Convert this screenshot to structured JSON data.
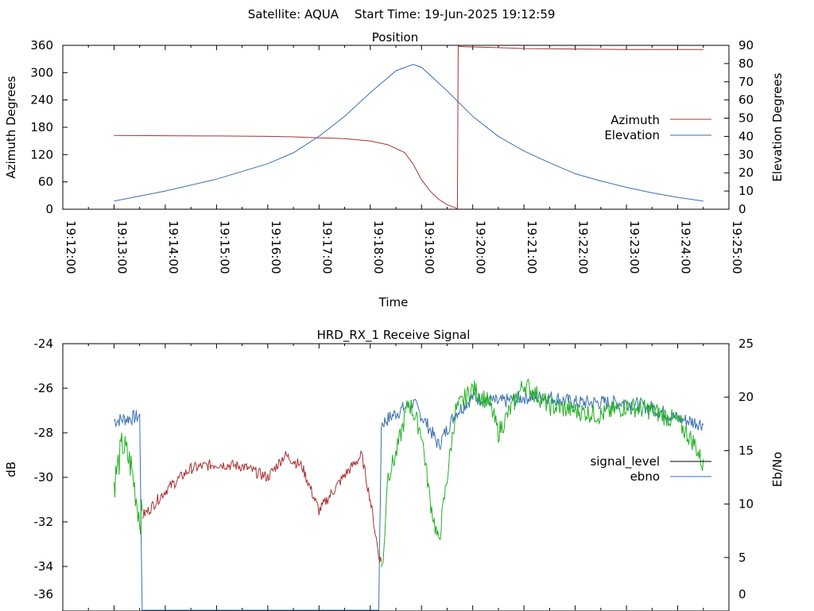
{
  "header": {
    "satellite": "Satellite: AQUA",
    "start_time": "Start Time: 19-Jun-2025 19:12:59"
  },
  "colors": {
    "azimuth": "#a83232",
    "elevation": "#3a6fb0",
    "signal_level_legend": "#000000",
    "ebno_legend": "#3a6fb0",
    "ebno_trace": "#3a6fb0",
    "signal_trace_red": "#a83232",
    "signal_trace_green": "#20b020"
  },
  "chart_data": [
    {
      "type": "line",
      "title": "Position",
      "xlabel": "Time",
      "ylabel": "Azimuth Degrees",
      "y2label": "Elevation Degrees",
      "xlim": [
        "19:12:00",
        "19:25:00"
      ],
      "ylim": [
        0,
        360
      ],
      "y2lim": [
        0,
        90
      ],
      "xticks": [
        "19:12:00",
        "19:13:00",
        "19:14:00",
        "19:15:00",
        "19:16:00",
        "19:17:00",
        "19:18:00",
        "19:19:00",
        "19:20:00",
        "19:21:00",
        "19:22:00",
        "19:23:00",
        "19:24:00",
        "19:25:00"
      ],
      "yticks": [
        "0",
        "60",
        "120",
        "180",
        "240",
        "300",
        "360"
      ],
      "y2ticks": [
        "0",
        "10",
        "20",
        "30",
        "40",
        "50",
        "60",
        "70",
        "80",
        "90"
      ],
      "legend_position": "right",
      "series": [
        {
          "name": "Azimuth",
          "axis": "left",
          "x": [
            "19:13:00",
            "19:14:00",
            "19:15:00",
            "19:16:00",
            "19:16:30",
            "19:17:00",
            "19:17:30",
            "19:18:00",
            "19:18:20",
            "19:18:40",
            "19:18:50",
            "19:19:00",
            "19:19:10",
            "19:19:20",
            "19:19:30",
            "19:19:40",
            "19:19:42",
            "19:19:43",
            "19:19:50",
            "19:20:30",
            "19:21:00",
            "19:22:00",
            "19:23:00",
            "19:24:00",
            "19:24:30"
          ],
          "values": [
            162,
            161.5,
            161,
            160,
            159,
            157,
            155,
            150,
            142,
            125,
            100,
            65,
            40,
            22,
            10,
            3,
            1,
            358,
            357,
            355,
            353,
            352,
            351,
            351,
            351
          ]
        },
        {
          "name": "Elevation",
          "axis": "right",
          "x": [
            "19:13:00",
            "19:14:00",
            "19:15:00",
            "19:16:00",
            "19:16:30",
            "19:17:00",
            "19:17:30",
            "19:18:00",
            "19:18:30",
            "19:18:50",
            "19:19:00",
            "19:19:30",
            "19:20:00",
            "19:20:30",
            "19:21:00",
            "19:21:30",
            "19:22:00",
            "19:22:30",
            "19:23:00",
            "19:23:30",
            "19:24:00",
            "19:24:30"
          ],
          "values": [
            4.5,
            10,
            16.5,
            25,
            31,
            40,
            51,
            64,
            76,
            79.5,
            78,
            65,
            51,
            40,
            32,
            25.5,
            19.5,
            15.5,
            12,
            9,
            6.5,
            4.5
          ]
        }
      ]
    },
    {
      "type": "line",
      "title": "HRD_RX_1 Receive Signal",
      "ylabel": "dB",
      "y2label": "Eb/No",
      "ylim": [
        -36,
        -24
      ],
      "y2lim": [
        0,
        25
      ],
      "yticks": [
        "-24",
        "-26",
        "-28",
        "-30",
        "-32",
        "-34",
        "-36"
      ],
      "y2ticks": [
        "0",
        "5",
        "10",
        "15",
        "20",
        "25"
      ],
      "legend_position": "right",
      "series": [
        {
          "name": "signal_level",
          "axis": "left",
          "x": [
            "19:13:00",
            "19:13:10",
            "19:13:20",
            "19:13:30",
            "19:13:40",
            "19:14:00",
            "19:14:30",
            "19:15:00",
            "19:15:30",
            "19:16:00",
            "19:16:20",
            "19:16:40",
            "19:17:00",
            "19:17:30",
            "19:17:50",
            "19:18:00",
            "19:18:10",
            "19:18:15",
            "19:18:20",
            "19:18:30",
            "19:18:45",
            "19:19:00",
            "19:19:10",
            "19:19:20",
            "19:19:40",
            "19:20:00",
            "19:20:20",
            "19:20:30",
            "19:21:00",
            "19:21:30",
            "19:22:00",
            "19:22:30",
            "19:23:00",
            "19:23:30",
            "19:24:00",
            "19:24:20",
            "19:24:30"
          ],
          "values": [
            -30.3,
            -28.5,
            -29.5,
            -31.8,
            -31.5,
            -30.6,
            -29.6,
            -29.4,
            -29.5,
            -30.0,
            -29.0,
            -29.5,
            -31.5,
            -29.9,
            -29.0,
            -31.0,
            -33.5,
            -34.0,
            -30.0,
            -29.0,
            -26.6,
            -28.0,
            -31.0,
            -33.0,
            -27.0,
            -26.0,
            -26.7,
            -28.0,
            -25.8,
            -26.8,
            -27.0,
            -27.2,
            -26.8,
            -27.0,
            -27.5,
            -28.5,
            -29.5
          ]
        },
        {
          "name": "ebno",
          "axis": "right",
          "x": [
            "19:13:00",
            "19:13:30",
            "19:13:33",
            "19:18:10",
            "19:18:13",
            "19:18:30",
            "19:18:50",
            "19:19:10",
            "19:19:20",
            "19:19:40",
            "19:20:00",
            "19:20:30",
            "19:21:00",
            "19:21:30",
            "19:22:00",
            "19:22:30",
            "19:23:00",
            "19:23:30",
            "19:24:00",
            "19:24:30"
          ],
          "values": [
            17.8,
            18.2,
            0,
            0,
            17.5,
            18.5,
            19.5,
            17.0,
            15.5,
            18.5,
            20.0,
            19.5,
            20.0,
            20.0,
            19.5,
            19.5,
            19.5,
            19.0,
            18.0,
            17.5
          ]
        }
      ]
    }
  ]
}
